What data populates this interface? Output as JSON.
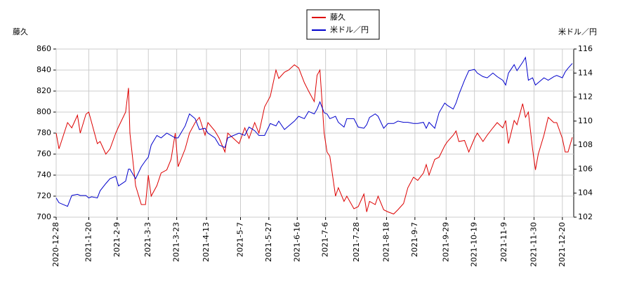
{
  "chart_data": {
    "type": "line",
    "y_label": "藤久",
    "y2_label": "米ドル／円",
    "x": [
      "2020-12-28",
      "2020-12-30",
      "2021-1-5",
      "2021-1-8",
      "2021-1-12",
      "2021-1-14",
      "2021-1-18",
      "2021-1-20",
      "2021-1-22",
      "2021-1-26",
      "2021-1-28",
      "2021-2-1",
      "2021-2-4",
      "2021-2-8",
      "2021-2-10",
      "2021-2-15",
      "2021-2-17",
      "2021-2-18",
      "2021-2-22",
      "2021-2-26",
      "2021-3-1",
      "2021-3-3",
      "2021-3-5",
      "2021-3-9",
      "2021-3-12",
      "2021-3-16",
      "2021-3-19",
      "2021-3-22",
      "2021-3-24",
      "2021-3-29",
      "2021-4-1",
      "2021-4-5",
      "2021-4-8",
      "2021-4-12",
      "2021-4-14",
      "2021-4-19",
      "2021-4-22",
      "2021-4-26",
      "2021-4-28",
      "2021-5-6",
      "2021-5-10",
      "2021-5-13",
      "2021-5-17",
      "2021-5-20",
      "2021-5-24",
      "2021-5-28",
      "2021-6-1",
      "2021-6-3",
      "2021-6-7",
      "2021-6-10",
      "2021-6-14",
      "2021-6-17",
      "2021-6-21",
      "2021-6-24",
      "2021-6-28",
      "2021-6-30",
      "2021-7-2",
      "2021-7-5",
      "2021-7-7",
      "2021-7-9",
      "2021-7-13",
      "2021-7-15",
      "2021-7-19",
      "2021-7-21",
      "2021-7-26",
      "2021-7-29",
      "2021-8-2",
      "2021-8-4",
      "2021-8-6",
      "2021-8-10",
      "2021-8-12",
      "2021-8-16",
      "2021-8-19",
      "2021-8-23",
      "2021-8-26",
      "2021-8-30",
      "2021-9-2",
      "2021-9-6",
      "2021-9-9",
      "2021-9-13",
      "2021-9-15",
      "2021-9-17",
      "2021-9-21",
      "2021-9-24",
      "2021-9-28",
      "2021-9-30",
      "2021-10-4",
      "2021-10-6",
      "2021-10-8",
      "2021-10-12",
      "2021-10-15",
      "2021-10-19",
      "2021-10-21",
      "2021-10-25",
      "2021-10-28",
      "2021-11-1",
      "2021-11-4",
      "2021-11-8",
      "2021-11-10",
      "2021-11-12",
      "2021-11-16",
      "2021-11-18",
      "2021-11-22",
      "2021-11-24",
      "2021-11-26",
      "2021-11-29",
      "2021-12-1",
      "2021-12-3",
      "2021-12-7",
      "2021-12-10",
      "2021-12-14",
      "2021-12-16",
      "2021-12-20",
      "2021-12-22",
      "2021-12-24",
      "2021-12-27"
    ],
    "series": [
      {
        "name": "藤久",
        "color": "#dd0000",
        "values": [
          780,
          765,
          790,
          785,
          797,
          780,
          798,
          800,
          790,
          770,
          772,
          760,
          765,
          780,
          786,
          800,
          823,
          780,
          730,
          712,
          712,
          740,
          720,
          730,
          742,
          745,
          755,
          780,
          748,
          765,
          780,
          790,
          795,
          778,
          790,
          782,
          775,
          762,
          780,
          770,
          785,
          775,
          790,
          780,
          805,
          815,
          840,
          832,
          838,
          840,
          845,
          842,
          828,
          820,
          810,
          835,
          840,
          780,
          762,
          758,
          720,
          728,
          715,
          720,
          708,
          710,
          722,
          705,
          715,
          712,
          720,
          707,
          705,
          703,
          707,
          713,
          728,
          738,
          735,
          742,
          750,
          740,
          755,
          757,
          768,
          772,
          778,
          782,
          772,
          773,
          762,
          775,
          780,
          772,
          778,
          785,
          790,
          785,
          792,
          770,
          792,
          788,
          808,
          795,
          800,
          765,
          745,
          760,
          778,
          795,
          790,
          790,
          775,
          762,
          762,
          776
        ]
      },
      {
        "name": "米ドル／円",
        "color": "#0000cc",
        "axis": "y2",
        "values": [
          103.6,
          103.2,
          102.9,
          103.8,
          103.9,
          103.8,
          103.8,
          103.6,
          103.7,
          103.6,
          104.2,
          104.8,
          105.2,
          105.4,
          104.6,
          105,
          106,
          106,
          105.2,
          106.2,
          106.7,
          107,
          108,
          108.8,
          108.6,
          109,
          108.8,
          108.6,
          108.6,
          109.6,
          110.6,
          110.2,
          109.3,
          109.4,
          109,
          108.6,
          108,
          107.8,
          108.6,
          109,
          108.8,
          109.5,
          109.2,
          108.8,
          108.8,
          109.8,
          109.6,
          110,
          109.3,
          109.6,
          110,
          110.4,
          110.2,
          110.8,
          110.6,
          111,
          111.6,
          110.7,
          110.6,
          110.2,
          110.4,
          109.9,
          109.5,
          110.2,
          110.2,
          109.5,
          109.4,
          109.7,
          110.3,
          110.6,
          110.4,
          109.4,
          109.8,
          109.8,
          110,
          109.9,
          109.9,
          109.8,
          109.8,
          109.9,
          109.4,
          109.9,
          109.4,
          110.7,
          111.5,
          111.3,
          111,
          111.5,
          112.2,
          113.4,
          114.2,
          114.3,
          114,
          113.7,
          113.6,
          114,
          113.7,
          113.4,
          113,
          114,
          114.7,
          114.2,
          114.9,
          115.3,
          113.4,
          113.6,
          113,
          113.2,
          113.6,
          113.4,
          113.7,
          113.8,
          113.6,
          114.1,
          114.4,
          114.8
        ]
      }
    ],
    "xlim": [
      "2020-12-28",
      "2021-12-28"
    ],
    "xticks": [
      "2020-12-28",
      "2021-1-20",
      "2021-2-9",
      "2021-3-3",
      "2021-3-23",
      "2021-4-13",
      "2021-5-7",
      "2021-5-27",
      "2021-6-16",
      "2021-7-6",
      "2021-7-28",
      "2021-8-18",
      "2021-9-7",
      "2021-9-29",
      "2021-10-19",
      "2021-11-9",
      "2021-11-30",
      "2021-12-20"
    ],
    "ylim": [
      700,
      860
    ],
    "yticks": [
      700,
      720,
      740,
      760,
      780,
      800,
      820,
      840,
      860
    ],
    "y2lim": [
      102,
      116
    ],
    "y2ticks": [
      102,
      104,
      106,
      108,
      110,
      112,
      114,
      116
    ],
    "grid": true
  }
}
